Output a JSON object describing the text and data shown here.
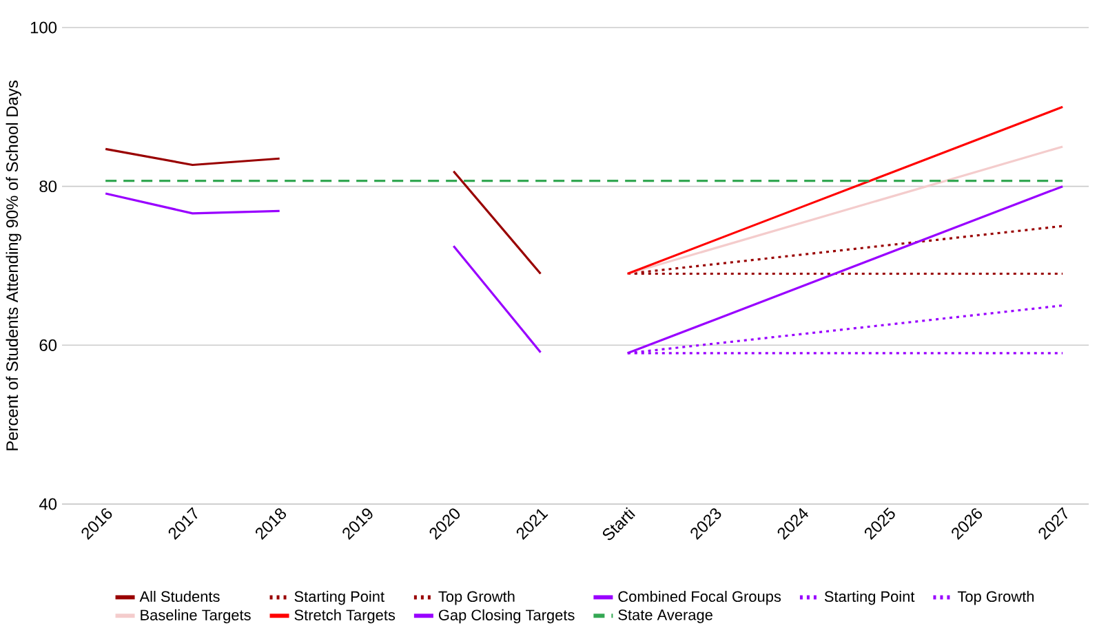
{
  "chart_data": {
    "type": "line",
    "ylabel": "Percent of Students Attending 90% of School Days",
    "categories": [
      "2016",
      "2017",
      "2018",
      "2019",
      "2020",
      "2021",
      "Starti",
      "2023",
      "2024",
      "2025",
      "2026",
      "2027"
    ],
    "ylim": [
      40,
      100
    ],
    "yticks": [
      40,
      60,
      80,
      100
    ],
    "grid": "y",
    "legend": "bottom",
    "marker": "none",
    "series": [
      {
        "name": "All Students",
        "color": "#990000",
        "line_style": "solid",
        "values": [
          84.7,
          82.7,
          83.5,
          null,
          81.9,
          69.0,
          null,
          null,
          null,
          null,
          null,
          null
        ]
      },
      {
        "name": "Starting Point",
        "color": "#990000",
        "line_style": "dotted",
        "values": [
          null,
          null,
          null,
          null,
          null,
          null,
          69,
          69,
          69,
          69,
          69,
          69
        ]
      },
      {
        "name": "Top Growth",
        "color": "#990000",
        "line_style": "dotted",
        "values": [
          null,
          null,
          null,
          null,
          null,
          null,
          69,
          70.2,
          71.4,
          72.6,
          73.8,
          75
        ]
      },
      {
        "name": "Combined Focal Groups",
        "color": "#9900ff",
        "line_style": "solid",
        "values": [
          79.1,
          76.6,
          76.9,
          null,
          72.5,
          59.1,
          null,
          null,
          null,
          null,
          null,
          null
        ]
      },
      {
        "name": "Starting Point",
        "color": "#9900ff",
        "line_style": "dotted",
        "values": [
          null,
          null,
          null,
          null,
          null,
          null,
          59,
          59,
          59,
          59,
          59,
          59
        ]
      },
      {
        "name": "Top Growth",
        "color": "#9900ff",
        "line_style": "dotted",
        "values": [
          null,
          null,
          null,
          null,
          null,
          null,
          59,
          60.2,
          61.4,
          62.6,
          63.8,
          65
        ]
      },
      {
        "name": "Baseline Targets",
        "color": "#f4cccc",
        "line_style": "solid",
        "values": [
          null,
          null,
          null,
          null,
          null,
          null,
          69,
          72.2,
          75.4,
          78.6,
          81.8,
          85
        ]
      },
      {
        "name": "Stretch Targets",
        "color": "#ff0000",
        "line_style": "solid",
        "values": [
          null,
          null,
          null,
          null,
          null,
          null,
          69,
          73.2,
          77.4,
          81.6,
          85.8,
          90
        ]
      },
      {
        "name": "Gap Closing Targets",
        "color": "#9900ff",
        "line_style": "solid",
        "values": [
          null,
          null,
          null,
          null,
          null,
          null,
          59,
          63.2,
          67.4,
          71.6,
          75.8,
          80
        ]
      },
      {
        "name": "State Average",
        "color": "#34a853",
        "line_style": "dashed",
        "values": [
          80.7,
          80.7,
          80.7,
          80.7,
          80.7,
          80.7,
          80.7,
          80.7,
          80.7,
          80.7,
          80.7,
          80.7
        ]
      }
    ]
  }
}
